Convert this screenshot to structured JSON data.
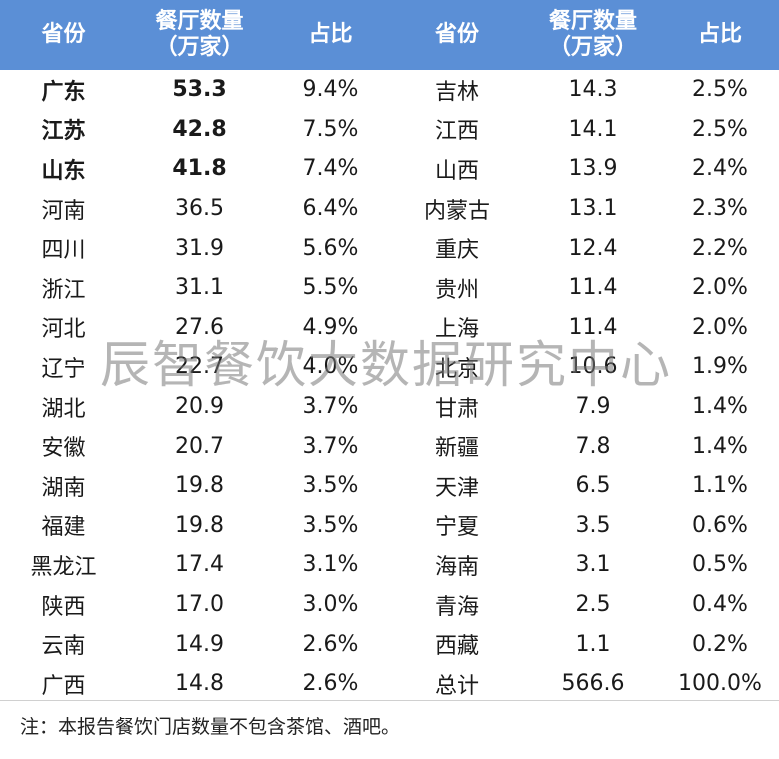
{
  "header": {
    "province": "省份",
    "count_line1": "餐厅数量",
    "count_line2": "（万家）",
    "share": "占比"
  },
  "rows": [
    {
      "left": {
        "province": "广东",
        "count": "53.3",
        "share": "9.4%",
        "bold": true
      },
      "right": {
        "province": "吉林",
        "count": "14.3",
        "share": "2.5%"
      }
    },
    {
      "left": {
        "province": "江苏",
        "count": "42.8",
        "share": "7.5%",
        "bold": true
      },
      "right": {
        "province": "江西",
        "count": "14.1",
        "share": "2.5%"
      }
    },
    {
      "left": {
        "province": "山东",
        "count": "41.8",
        "share": "7.4%",
        "bold": true
      },
      "right": {
        "province": "山西",
        "count": "13.9",
        "share": "2.4%"
      }
    },
    {
      "left": {
        "province": "河南",
        "count": "36.5",
        "share": "6.4%"
      },
      "right": {
        "province": "内蒙古",
        "count": "13.1",
        "share": "2.3%"
      }
    },
    {
      "left": {
        "province": "四川",
        "count": "31.9",
        "share": "5.6%"
      },
      "right": {
        "province": "重庆",
        "count": "12.4",
        "share": "2.2%"
      }
    },
    {
      "left": {
        "province": "浙江",
        "count": "31.1",
        "share": "5.5%"
      },
      "right": {
        "province": "贵州",
        "count": "11.4",
        "share": "2.0%"
      }
    },
    {
      "left": {
        "province": "河北",
        "count": "27.6",
        "share": "4.9%"
      },
      "right": {
        "province": "上海",
        "count": "11.4",
        "share": "2.0%"
      }
    },
    {
      "left": {
        "province": "辽宁",
        "count": "22.7",
        "share": "4.0%"
      },
      "right": {
        "province": "北京",
        "count": "10.6",
        "share": "1.9%"
      }
    },
    {
      "left": {
        "province": "湖北",
        "count": "20.9",
        "share": "3.7%"
      },
      "right": {
        "province": "甘肃",
        "count": "7.9",
        "share": "1.4%"
      }
    },
    {
      "left": {
        "province": "安徽",
        "count": "20.7",
        "share": "3.7%"
      },
      "right": {
        "province": "新疆",
        "count": "7.8",
        "share": "1.4%"
      }
    },
    {
      "left": {
        "province": "湖南",
        "count": "19.8",
        "share": "3.5%"
      },
      "right": {
        "province": "天津",
        "count": "6.5",
        "share": "1.1%"
      }
    },
    {
      "left": {
        "province": "福建",
        "count": "19.8",
        "share": "3.5%"
      },
      "right": {
        "province": "宁夏",
        "count": "3.5",
        "share": "0.6%"
      }
    },
    {
      "left": {
        "province": "黑龙江",
        "count": "17.4",
        "share": "3.1%"
      },
      "right": {
        "province": "海南",
        "count": "3.1",
        "share": "0.5%"
      }
    },
    {
      "left": {
        "province": "陕西",
        "count": "17.0",
        "share": "3.0%"
      },
      "right": {
        "province": "青海",
        "count": "2.5",
        "share": "0.4%"
      }
    },
    {
      "left": {
        "province": "云南",
        "count": "14.9",
        "share": "2.6%"
      },
      "right": {
        "province": "西藏",
        "count": "1.1",
        "share": "0.2%"
      }
    },
    {
      "left": {
        "province": "广西",
        "count": "14.8",
        "share": "2.6%"
      },
      "right": {
        "province": "总计",
        "count": "566.6",
        "share": "100.0%"
      }
    }
  ],
  "watermark": "辰智餐饮大数据研究中心",
  "note": "注：本报告餐饮门店数量不包含茶馆、酒吧。",
  "colors": {
    "header_bg": "#5b8fd6",
    "header_text": "#ffffff"
  }
}
